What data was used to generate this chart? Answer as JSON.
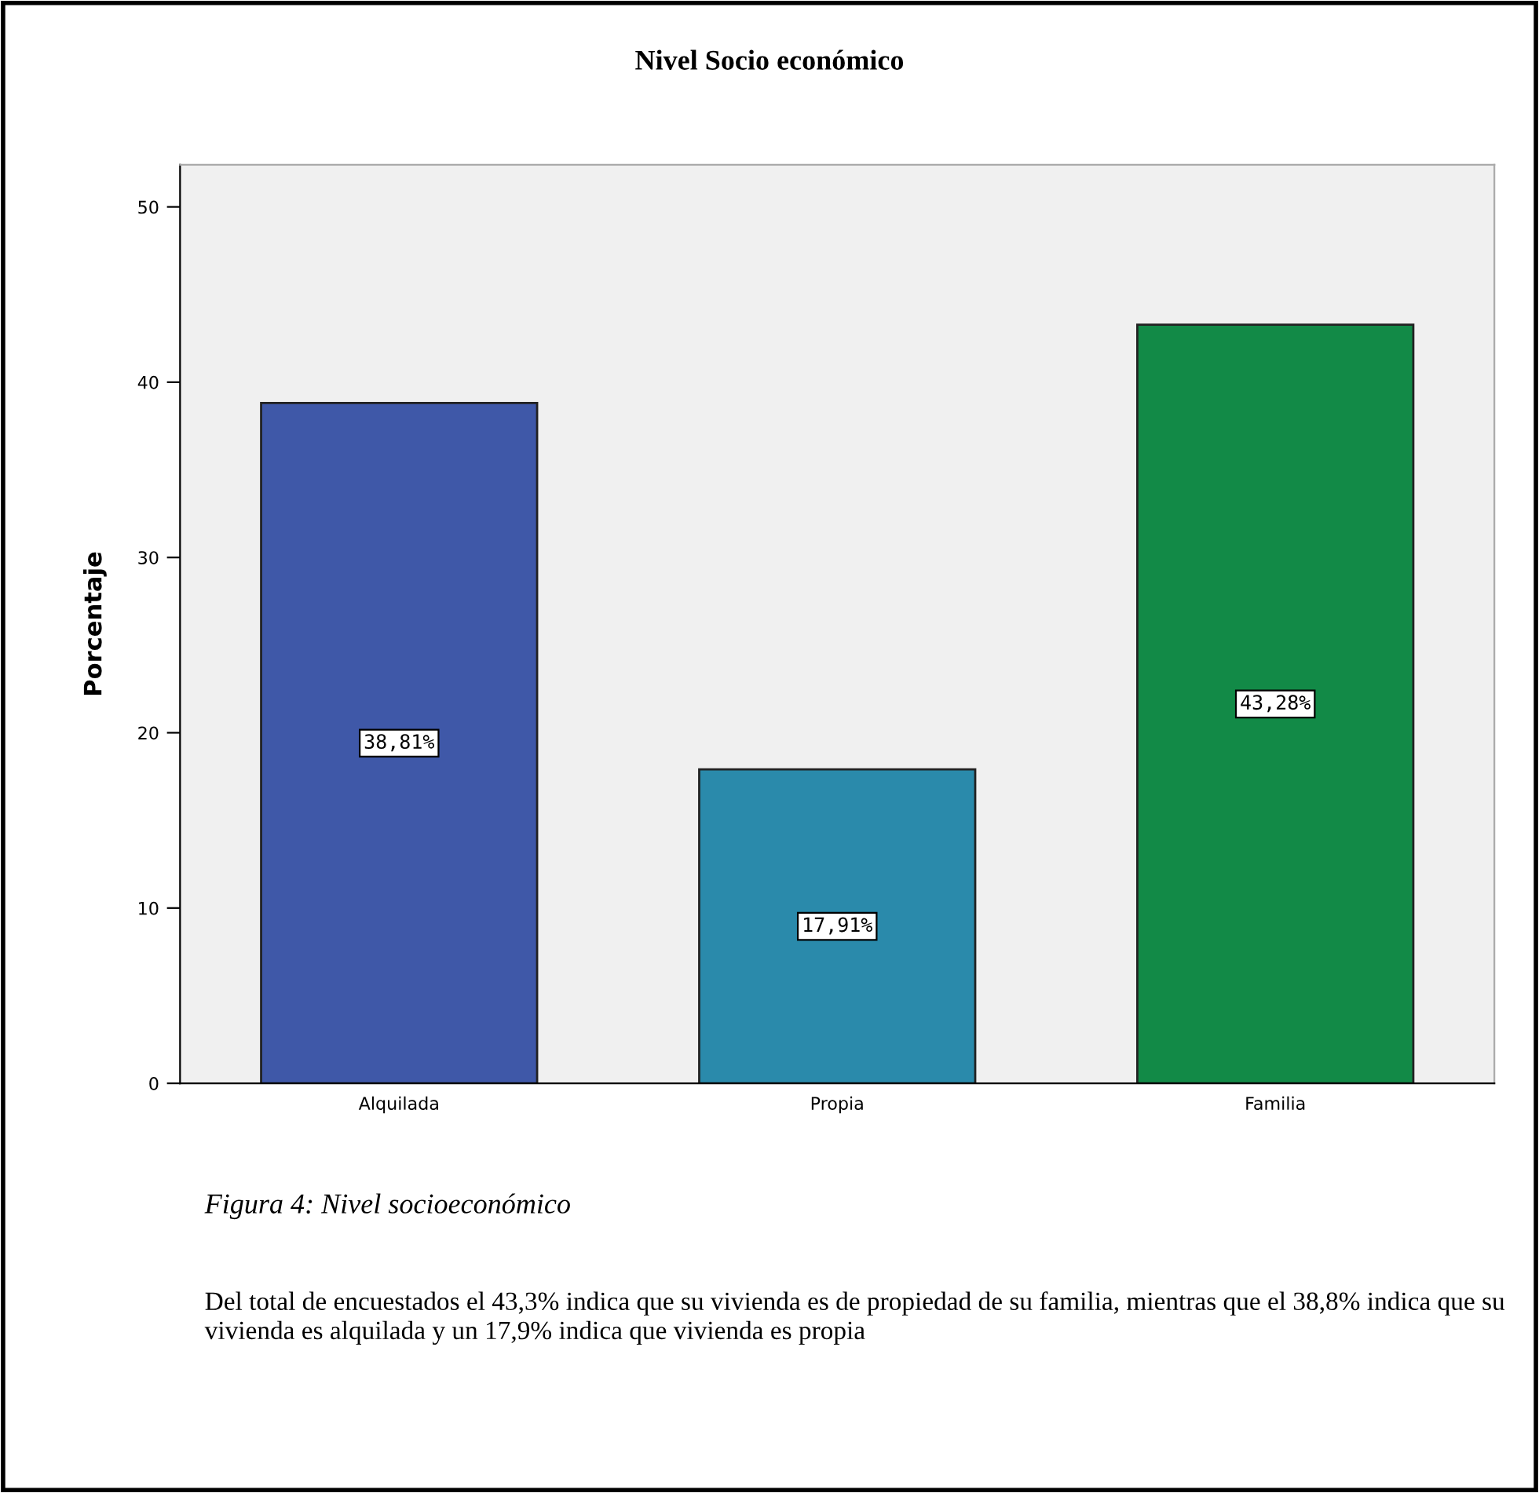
{
  "chart_data": {
    "type": "bar",
    "title": "Nivel Socio económico",
    "ylabel": "Porcentaje",
    "categories": [
      "Alquilada",
      "Propia",
      "Familia"
    ],
    "values": [
      38.81,
      17.91,
      43.28
    ],
    "colors": [
      "#3f58a8",
      "#2a8aab",
      "#128a47"
    ],
    "value_labels": [
      "38,81%",
      "17,91%",
      "43,28%"
    ],
    "ylim": [
      0,
      52.4
    ],
    "yticks": [
      0,
      10,
      20,
      30,
      40,
      50
    ],
    "annotations": [
      "Figura 4: Nivel socioeconómico",
      "Del total de encuestados el 43,3% indica que su vivienda es de propiedad de su familia, mientras que el 38,8% indica que su vivienda es alquilada y un 17,9% indica que vivienda es propia"
    ]
  }
}
